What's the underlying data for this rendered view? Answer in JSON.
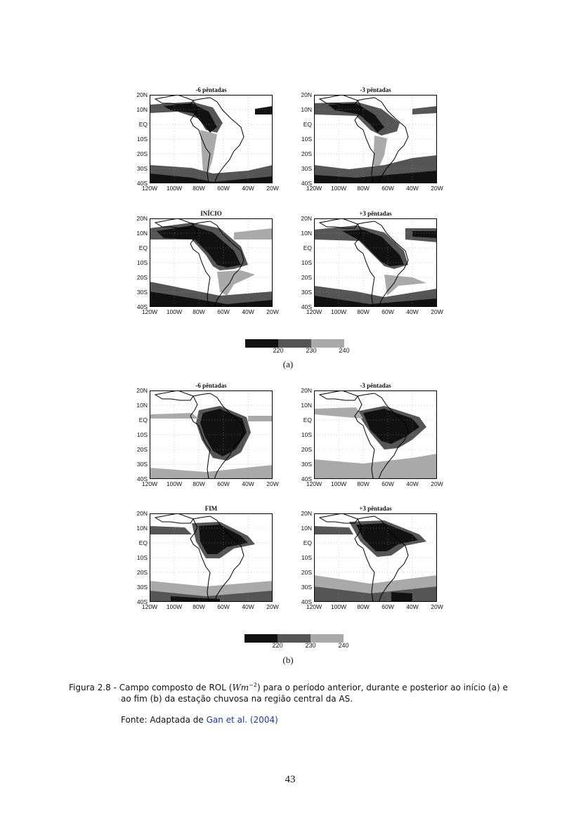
{
  "lat_labels": [
    "20N",
    "10N",
    "EQ",
    "10S",
    "20S",
    "30S",
    "40S"
  ],
  "lon_labels": [
    "120W",
    "100W",
    "80W",
    "60W",
    "40W",
    "20W"
  ],
  "colorbar": {
    "ticks": [
      "220",
      "230",
      "240"
    ],
    "colors": [
      "#111111",
      "#555555",
      "#aaaaaa"
    ]
  },
  "panel_a": {
    "sublabel": "(a)",
    "maps": [
      {
        "title": "-6 pêntadas"
      },
      {
        "title": "-3 pêntadas"
      },
      {
        "title": "INÍCIO"
      },
      {
        "title": "+3 pêntadas"
      }
    ]
  },
  "panel_b": {
    "sublabel": "(b)",
    "maps": [
      {
        "title": "-6 pêntadas"
      },
      {
        "title": "-3 pêntadas"
      },
      {
        "title": "FIM"
      },
      {
        "title": "+3 pêntadas"
      }
    ]
  },
  "caption": {
    "figure_label": "Figura 2.8 -",
    "text_part1": "Campo composto de ROL (",
    "unit": "Wm",
    "unit_exp": "−2",
    "text_part2": ") para o período anterior, durante e posterior ao início (a) e",
    "line2": "ao fim (b) da estação chuvosa na região central da AS.",
    "source_prefix": "Fonte: Adaptada de ",
    "source_link": "Gan et al. (2004)"
  },
  "page_number": "43"
}
